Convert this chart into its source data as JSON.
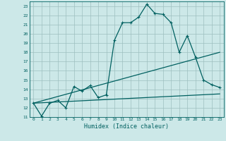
{
  "title": "",
  "xlabel": "Humidex (Indice chaleur)",
  "ylabel": "",
  "xlim": [
    -0.5,
    23.5
  ],
  "ylim": [
    11,
    23.5
  ],
  "yticks": [
    11,
    12,
    13,
    14,
    15,
    16,
    17,
    18,
    19,
    20,
    21,
    22,
    23
  ],
  "xticks": [
    0,
    1,
    2,
    3,
    4,
    5,
    6,
    7,
    8,
    9,
    10,
    11,
    12,
    13,
    14,
    15,
    16,
    17,
    18,
    19,
    20,
    21,
    22,
    23
  ],
  "bg_color": "#cce8e8",
  "grid_color": "#9dbfbf",
  "line_color": "#006060",
  "line1_x": [
    0,
    1,
    2,
    3,
    4,
    5,
    6,
    7,
    8,
    9,
    10,
    11,
    12,
    13,
    14,
    15,
    16,
    17,
    18,
    19,
    20,
    21,
    22,
    23
  ],
  "line1_y": [
    12.5,
    11.1,
    12.5,
    12.8,
    12.0,
    14.3,
    13.8,
    14.4,
    13.1,
    13.4,
    19.3,
    21.2,
    21.2,
    21.8,
    23.2,
    22.2,
    22.1,
    21.2,
    18.0,
    19.8,
    17.5,
    15.0,
    14.5,
    14.2
  ],
  "line2_x": [
    0,
    23
  ],
  "line2_y": [
    12.5,
    18.0
  ],
  "line3_x": [
    0,
    23
  ],
  "line3_y": [
    12.5,
    13.5
  ],
  "marker_style": "+",
  "marker_size": 3.5,
  "linewidth": 0.9
}
